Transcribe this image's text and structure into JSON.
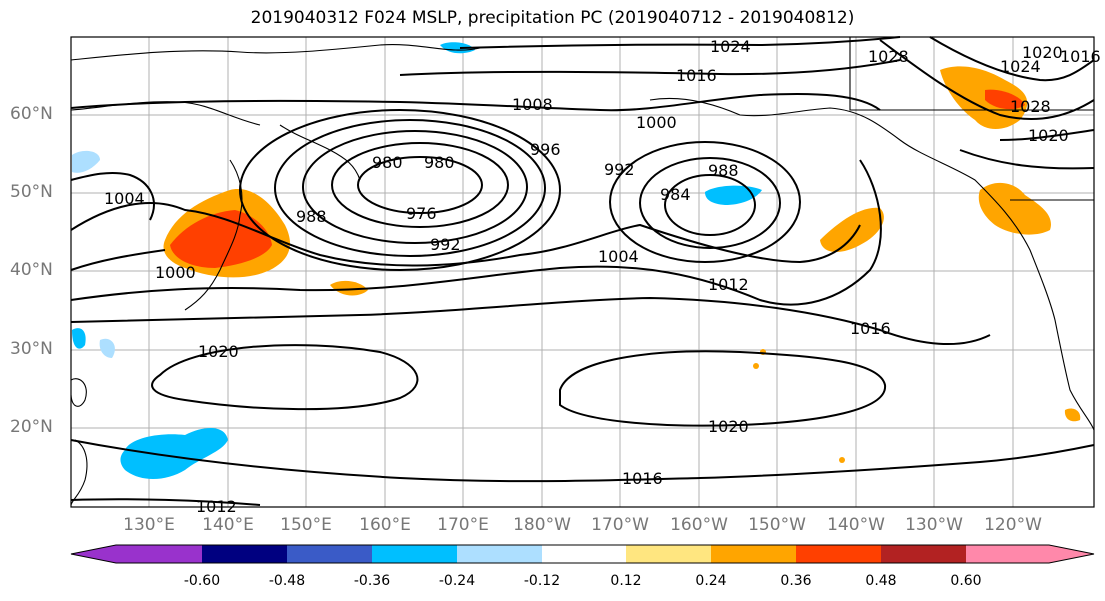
{
  "title": "2019040312 F024 MSLP, precipitation PC (2019040712 - 2019040812)",
  "lat_labels": [
    "60°N",
    "50°N",
    "40°N",
    "30°N",
    "20°N"
  ],
  "lon_labels": [
    "130°E",
    "140°E",
    "150°E",
    "160°E",
    "170°E",
    "180°W",
    "170°W",
    "160°W",
    "150°W",
    "140°W",
    "130°W",
    "120°W"
  ],
  "colorbar": {
    "colors": [
      "#9932CC",
      "#000080",
      "#3A5BC7",
      "#00BFFF",
      "#ADDFFF",
      "#FFFFFF",
      "#FFE680",
      "#FFA500",
      "#FF4000",
      "#B22222",
      "#FF88AA"
    ],
    "tick_labels": [
      "-0.60",
      "-0.48",
      "-0.36",
      "-0.24",
      "-0.12",
      "0.12",
      "0.24",
      "0.36",
      "0.48",
      "0.60"
    ]
  },
  "isobar_labels": [
    "1024",
    "1016",
    "1008",
    "1000",
    "996",
    "992",
    "988",
    "984",
    "980",
    "980",
    "976",
    "992",
    "1004",
    "1004",
    "1000",
    "988",
    "1012",
    "1016",
    "1020",
    "1020",
    "1016",
    "1012",
    "1028",
    "1024",
    "1020",
    "1028",
    "1020",
    "1016"
  ]
}
